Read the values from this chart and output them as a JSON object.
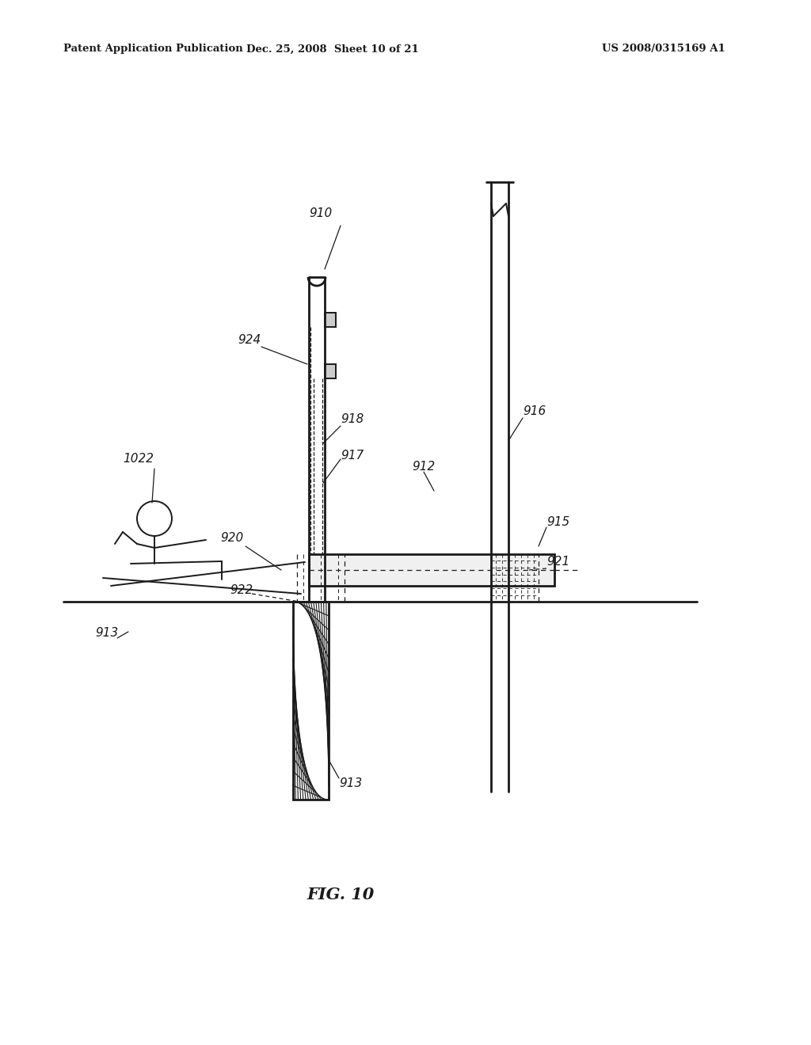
{
  "bg_color": "#ffffff",
  "header_left": "Patent Application Publication",
  "header_mid": "Dec. 25, 2008  Sheet 10 of 21",
  "header_right": "US 2008/0315169 A1",
  "fig_label": "FIG. 10",
  "black": "#1a1a1a",
  "lw": 1.4,
  "lw_thick": 2.0,
  "lw_thin": 0.9
}
